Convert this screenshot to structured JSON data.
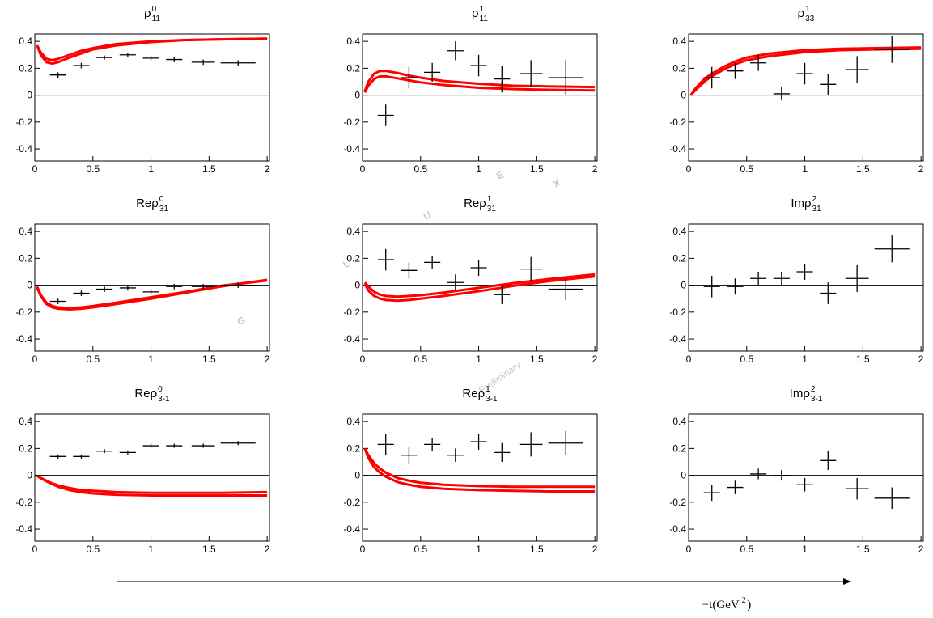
{
  "chart_data": [
    {
      "type": "scatter",
      "title": {
        "base": "ρ",
        "sup": "0",
        "sub": "11"
      },
      "x": [
        0.2,
        0.4,
        0.6,
        0.8,
        1.0,
        1.2,
        1.45,
        1.75
      ],
      "xerr": [
        0.07,
        0.07,
        0.07,
        0.07,
        0.07,
        0.07,
        0.1,
        0.15
      ],
      "values": [
        0.15,
        0.22,
        0.28,
        0.3,
        0.275,
        0.265,
        0.245,
        0.24
      ],
      "yerr": [
        0.02,
        0.02,
        0.015,
        0.015,
        0.015,
        0.02,
        0.02,
        0.02
      ],
      "color": "#000000",
      "curves": [
        {
          "color": "#ff0000",
          "x": [
            0.02,
            0.05,
            0.1,
            0.15,
            0.2,
            0.3,
            0.4,
            0.5,
            0.7,
            1.0,
            1.3,
            1.6,
            2.0
          ],
          "values": [
            0.37,
            0.32,
            0.27,
            0.26,
            0.27,
            0.3,
            0.33,
            0.35,
            0.38,
            0.4,
            0.41,
            0.415,
            0.42
          ]
        },
        {
          "color": "#ff0000",
          "x": [
            0.02,
            0.05,
            0.1,
            0.15,
            0.2,
            0.3,
            0.4,
            0.5,
            0.7,
            1.0,
            1.3,
            1.6,
            2.0
          ],
          "values": [
            0.37,
            0.3,
            0.245,
            0.235,
            0.245,
            0.28,
            0.31,
            0.34,
            0.37,
            0.395,
            0.41,
            0.415,
            0.42
          ]
        }
      ],
      "xlim": [
        0,
        2.02
      ],
      "ylim": [
        -0.49,
        0.455
      ],
      "xticks": [
        0,
        0.5,
        1,
        1.5,
        2
      ],
      "yticks": [
        -0.4,
        -0.2,
        0,
        0.2,
        0.4
      ],
      "zero_line": true
    },
    {
      "type": "scatter",
      "title": {
        "base": "ρ",
        "sup": "1",
        "sub": "11"
      },
      "x": [
        0.2,
        0.4,
        0.6,
        0.8,
        1.0,
        1.2,
        1.45,
        1.75
      ],
      "xerr": [
        0.07,
        0.07,
        0.07,
        0.07,
        0.07,
        0.07,
        0.1,
        0.15
      ],
      "values": [
        -0.15,
        0.13,
        0.17,
        0.33,
        0.22,
        0.12,
        0.16,
        0.13
      ],
      "yerr": [
        0.08,
        0.08,
        0.07,
        0.07,
        0.08,
        0.1,
        0.1,
        0.13
      ],
      "color": "#000000",
      "curves": [
        {
          "color": "#ff0000",
          "x": [
            0.02,
            0.05,
            0.1,
            0.15,
            0.2,
            0.3,
            0.4,
            0.5,
            0.7,
            1.0,
            1.3,
            1.6,
            2.0
          ],
          "values": [
            0.03,
            0.1,
            0.16,
            0.18,
            0.18,
            0.165,
            0.145,
            0.13,
            0.105,
            0.085,
            0.07,
            0.065,
            0.06
          ]
        },
        {
          "color": "#ff0000",
          "x": [
            0.02,
            0.05,
            0.1,
            0.15,
            0.2,
            0.3,
            0.4,
            0.5,
            0.7,
            1.0,
            1.3,
            1.6,
            2.0
          ],
          "values": [
            0.02,
            0.07,
            0.12,
            0.14,
            0.14,
            0.125,
            0.11,
            0.095,
            0.075,
            0.055,
            0.045,
            0.04,
            0.035
          ]
        }
      ],
      "xlim": [
        0,
        2.02
      ],
      "ylim": [
        -0.49,
        0.455
      ],
      "xticks": [
        0,
        0.5,
        1,
        1.5,
        2
      ],
      "yticks": [
        -0.4,
        -0.2,
        0,
        0.2,
        0.4
      ],
      "zero_line": true
    },
    {
      "type": "scatter",
      "title": {
        "base": "ρ",
        "sup": "1",
        "sub": "33"
      },
      "x": [
        0.2,
        0.4,
        0.6,
        0.8,
        1.0,
        1.2,
        1.45,
        1.75
      ],
      "xerr": [
        0.07,
        0.07,
        0.07,
        0.07,
        0.07,
        0.07,
        0.1,
        0.15
      ],
      "values": [
        0.13,
        0.18,
        0.24,
        0.01,
        0.16,
        0.08,
        0.19,
        0.34
      ],
      "yerr": [
        0.08,
        0.06,
        0.06,
        0.05,
        0.08,
        0.08,
        0.1,
        0.1
      ],
      "color": "#000000",
      "curves": [
        {
          "color": "#ff0000",
          "x": [
            0.02,
            0.05,
            0.1,
            0.15,
            0.2,
            0.3,
            0.4,
            0.5,
            0.7,
            1.0,
            1.3,
            1.6,
            2.0
          ],
          "values": [
            0,
            0.04,
            0.09,
            0.13,
            0.16,
            0.21,
            0.25,
            0.28,
            0.31,
            0.335,
            0.345,
            0.35,
            0.355
          ]
        },
        {
          "color": "#ff0000",
          "x": [
            0.02,
            0.05,
            0.1,
            0.15,
            0.2,
            0.3,
            0.4,
            0.5,
            0.7,
            1.0,
            1.3,
            1.6,
            2.0
          ],
          "values": [
            0,
            0.03,
            0.07,
            0.11,
            0.14,
            0.19,
            0.23,
            0.26,
            0.29,
            0.32,
            0.335,
            0.34,
            0.345
          ]
        }
      ],
      "xlim": [
        0,
        2.02
      ],
      "ylim": [
        -0.49,
        0.455
      ],
      "xticks": [
        0,
        0.5,
        1,
        1.5,
        2
      ],
      "yticks": [
        -0.4,
        -0.2,
        0,
        0.2,
        0.4
      ],
      "zero_line": true
    },
    {
      "type": "scatter",
      "title": {
        "base": "Reρ",
        "sup": "0",
        "sub": "31"
      },
      "x": [
        0.2,
        0.4,
        0.6,
        0.8,
        1.0,
        1.2,
        1.45,
        1.75
      ],
      "xerr": [
        0.07,
        0.07,
        0.07,
        0.07,
        0.07,
        0.07,
        0.1,
        0.15
      ],
      "values": [
        -0.12,
        -0.06,
        -0.03,
        -0.02,
        -0.05,
        -0.01,
        -0.01,
        0.0
      ],
      "yerr": [
        0.02,
        0.02,
        0.02,
        0.02,
        0.02,
        0.02,
        0.02,
        0.02
      ],
      "color": "#000000",
      "curves": [
        {
          "color": "#ff0000",
          "x": [
            0.02,
            0.05,
            0.1,
            0.15,
            0.2,
            0.3,
            0.4,
            0.5,
            0.7,
            1.0,
            1.3,
            1.6,
            2.0
          ],
          "values": [
            -0.02,
            -0.08,
            -0.14,
            -0.165,
            -0.175,
            -0.18,
            -0.175,
            -0.165,
            -0.14,
            -0.1,
            -0.055,
            -0.01,
            0.04
          ]
        },
        {
          "color": "#ff0000",
          "x": [
            0.02,
            0.05,
            0.1,
            0.15,
            0.2,
            0.3,
            0.4,
            0.5,
            0.7,
            1.0,
            1.3,
            1.6,
            2.0
          ],
          "values": [
            -0.01,
            -0.07,
            -0.13,
            -0.155,
            -0.165,
            -0.17,
            -0.165,
            -0.155,
            -0.13,
            -0.09,
            -0.05,
            -0.005,
            0.035
          ]
        }
      ],
      "xlim": [
        0,
        2.02
      ],
      "ylim": [
        -0.49,
        0.455
      ],
      "xticks": [
        0,
        0.5,
        1,
        1.5,
        2
      ],
      "yticks": [
        -0.4,
        -0.2,
        0,
        0.2,
        0.4
      ],
      "zero_line": true
    },
    {
      "type": "scatter",
      "title": {
        "base": "Reρ",
        "sup": "1",
        "sub": "31"
      },
      "x": [
        0.2,
        0.4,
        0.6,
        0.8,
        1.0,
        1.2,
        1.45,
        1.75
      ],
      "xerr": [
        0.07,
        0.07,
        0.07,
        0.07,
        0.07,
        0.07,
        0.1,
        0.15
      ],
      "values": [
        0.19,
        0.11,
        0.17,
        0.02,
        0.13,
        -0.07,
        0.12,
        -0.03
      ],
      "yerr": [
        0.08,
        0.06,
        0.05,
        0.06,
        0.06,
        0.07,
        0.09,
        0.08
      ],
      "color": "#000000",
      "curves": [
        {
          "color": "#ff0000",
          "x": [
            0.02,
            0.05,
            0.1,
            0.15,
            0.2,
            0.3,
            0.4,
            0.5,
            0.7,
            1.0,
            1.3,
            1.6,
            2.0
          ],
          "values": [
            0.02,
            -0.01,
            -0.05,
            -0.07,
            -0.08,
            -0.085,
            -0.08,
            -0.075,
            -0.055,
            -0.02,
            0.015,
            0.045,
            0.08
          ]
        },
        {
          "color": "#ff0000",
          "x": [
            0.02,
            0.05,
            0.1,
            0.15,
            0.2,
            0.3,
            0.4,
            0.5,
            0.7,
            1.0,
            1.3,
            1.6,
            2.0
          ],
          "values": [
            0.01,
            -0.04,
            -0.08,
            -0.1,
            -0.11,
            -0.115,
            -0.11,
            -0.1,
            -0.08,
            -0.045,
            -0.005,
            0.03,
            0.065
          ]
        }
      ],
      "xlim": [
        0,
        2.02
      ],
      "ylim": [
        -0.49,
        0.455
      ],
      "xticks": [
        0,
        0.5,
        1,
        1.5,
        2
      ],
      "yticks": [
        -0.4,
        -0.2,
        0,
        0.2,
        0.4
      ],
      "zero_line": true
    },
    {
      "type": "scatter",
      "title": {
        "base": "Imρ",
        "sup": "2",
        "sub": "31"
      },
      "x": [
        0.2,
        0.4,
        0.6,
        0.8,
        1.0,
        1.2,
        1.45,
        1.75
      ],
      "xerr": [
        0.07,
        0.07,
        0.07,
        0.07,
        0.07,
        0.07,
        0.1,
        0.15
      ],
      "values": [
        -0.01,
        -0.01,
        0.05,
        0.05,
        0.1,
        -0.06,
        0.05,
        0.27
      ],
      "yerr": [
        0.08,
        0.06,
        0.05,
        0.05,
        0.06,
        0.08,
        0.1,
        0.1
      ],
      "color": "#000000",
      "curves": [],
      "xlim": [
        0,
        2.02
      ],
      "ylim": [
        -0.49,
        0.455
      ],
      "xticks": [
        0,
        0.5,
        1,
        1.5,
        2
      ],
      "yticks": [
        -0.4,
        -0.2,
        0,
        0.2,
        0.4
      ],
      "zero_line": true
    },
    {
      "type": "scatter",
      "title": {
        "base": "Reρ",
        "sup": "0",
        "sub": "3-1"
      },
      "x": [
        0.2,
        0.4,
        0.6,
        0.8,
        1.0,
        1.2,
        1.45,
        1.75
      ],
      "xerr": [
        0.07,
        0.07,
        0.07,
        0.07,
        0.07,
        0.07,
        0.1,
        0.15
      ],
      "values": [
        0.14,
        0.14,
        0.18,
        0.17,
        0.22,
        0.22,
        0.22,
        0.24
      ],
      "yerr": [
        0.015,
        0.015,
        0.015,
        0.015,
        0.015,
        0.015,
        0.015,
        0.015
      ],
      "color": "#000000",
      "curves": [
        {
          "color": "#ff0000",
          "x": [
            0.02,
            0.05,
            0.1,
            0.15,
            0.2,
            0.3,
            0.4,
            0.5,
            0.7,
            1.0,
            1.3,
            1.6,
            2.0
          ],
          "values": [
            -0.005,
            -0.02,
            -0.04,
            -0.06,
            -0.075,
            -0.095,
            -0.11,
            -0.115,
            -0.125,
            -0.13,
            -0.13,
            -0.13,
            -0.125
          ]
        },
        {
          "color": "#ff0000",
          "x": [
            0.02,
            0.05,
            0.1,
            0.15,
            0.2,
            0.3,
            0.4,
            0.5,
            0.7,
            1.0,
            1.3,
            1.6,
            2.0
          ],
          "values": [
            -0.005,
            -0.02,
            -0.045,
            -0.065,
            -0.085,
            -0.11,
            -0.125,
            -0.135,
            -0.145,
            -0.15,
            -0.15,
            -0.15,
            -0.15
          ]
        }
      ],
      "xlim": [
        0,
        2.02
      ],
      "ylim": [
        -0.49,
        0.455
      ],
      "xticks": [
        0,
        0.5,
        1,
        1.5,
        2
      ],
      "yticks": [
        -0.4,
        -0.2,
        0,
        0.2,
        0.4
      ],
      "zero_line": true
    },
    {
      "type": "scatter",
      "title": {
        "base": "Reρ",
        "sup": "1",
        "sub": "3-1"
      },
      "x": [
        0.2,
        0.4,
        0.6,
        0.8,
        1.0,
        1.2,
        1.45,
        1.75
      ],
      "xerr": [
        0.07,
        0.07,
        0.07,
        0.07,
        0.07,
        0.07,
        0.1,
        0.15
      ],
      "values": [
        0.23,
        0.15,
        0.23,
        0.15,
        0.25,
        0.17,
        0.23,
        0.24
      ],
      "yerr": [
        0.08,
        0.06,
        0.05,
        0.05,
        0.06,
        0.07,
        0.09,
        0.09
      ],
      "color": "#000000",
      "curves": [
        {
          "color": "#ff0000",
          "x": [
            0.02,
            0.05,
            0.1,
            0.15,
            0.2,
            0.3,
            0.4,
            0.5,
            0.7,
            1.0,
            1.3,
            1.6,
            2.0
          ],
          "values": [
            0.2,
            0.15,
            0.09,
            0.05,
            0.02,
            -0.02,
            -0.04,
            -0.055,
            -0.07,
            -0.08,
            -0.085,
            -0.085,
            -0.085
          ]
        },
        {
          "color": "#ff0000",
          "x": [
            0.02,
            0.05,
            0.1,
            0.15,
            0.2,
            0.3,
            0.4,
            0.5,
            0.7,
            1.0,
            1.3,
            1.6,
            2.0
          ],
          "values": [
            0.2,
            0.13,
            0.06,
            0.02,
            -0.01,
            -0.05,
            -0.07,
            -0.085,
            -0.1,
            -0.11,
            -0.115,
            -0.12,
            -0.12
          ]
        }
      ],
      "xlim": [
        0,
        2.02
      ],
      "ylim": [
        -0.49,
        0.455
      ],
      "xticks": [
        0,
        0.5,
        1,
        1.5,
        2
      ],
      "yticks": [
        -0.4,
        -0.2,
        0,
        0.2,
        0.4
      ],
      "zero_line": true
    },
    {
      "type": "scatter",
      "title": {
        "base": "Imρ",
        "sup": "2",
        "sub": "3-1"
      },
      "x": [
        0.2,
        0.4,
        0.6,
        0.8,
        1.0,
        1.2,
        1.45,
        1.75
      ],
      "xerr": [
        0.07,
        0.07,
        0.07,
        0.07,
        0.07,
        0.07,
        0.1,
        0.15
      ],
      "values": [
        -0.13,
        -0.09,
        0.01,
        0.0,
        -0.07,
        0.11,
        -0.1,
        -0.17
      ],
      "yerr": [
        0.06,
        0.05,
        0.04,
        0.04,
        0.05,
        0.07,
        0.08,
        0.08
      ],
      "color": "#000000",
      "curves": [],
      "xlim": [
        0,
        2.02
      ],
      "ylim": [
        -0.49,
        0.455
      ],
      "xticks": [
        0,
        0.5,
        1,
        1.5,
        2
      ],
      "yticks": [
        -0.4,
        -0.2,
        0,
        0.2,
        0.4
      ],
      "zero_line": true
    }
  ],
  "axis_label": {
    "base": "−t(GeV",
    "sup": "2",
    "end": ")"
  },
  "watermark": {
    "letters": [
      "G",
      "L",
      "U",
      "E",
      "X"
    ],
    "label": "Preliminary"
  }
}
